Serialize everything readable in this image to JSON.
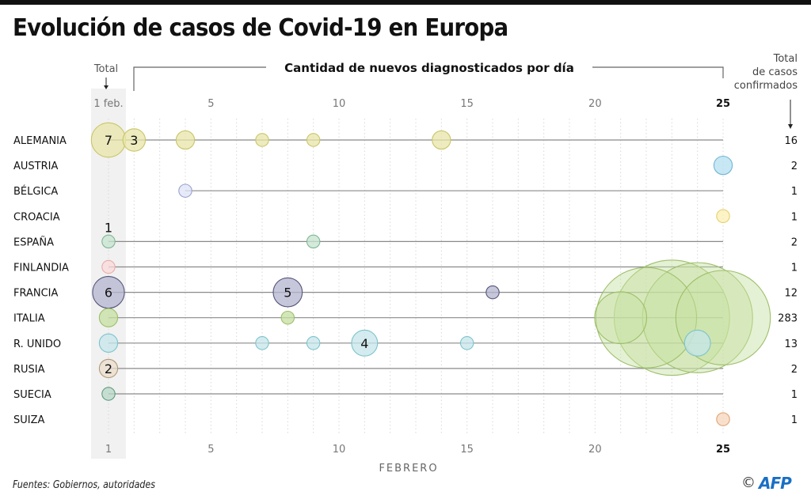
{
  "title": "Evolución de casos de Covid-19 en Europa",
  "footer": {
    "source": "Fuentes: Gobiernos, autoridades",
    "copyright_symbol": "©",
    "logo": "AFP"
  },
  "chart_data": {
    "type": "scatter",
    "subtype": "bubble-timeline",
    "title": "Evolución de casos de Covid-19 en Europa",
    "subtitle": "Cantidad de nuevos diagnosticados por día",
    "left_header": "Total",
    "right_header": [
      "Total",
      "de casos",
      "confirmados"
    ],
    "xlabel": "FEBRERO",
    "xlim": [
      1,
      25
    ],
    "top_ticks": [
      {
        "value": 1,
        "label": "1 feb."
      },
      {
        "value": 5,
        "label": "5"
      },
      {
        "value": 10,
        "label": "10"
      },
      {
        "value": 15,
        "label": "15"
      },
      {
        "value": 20,
        "label": "20"
      },
      {
        "value": 25,
        "label": "25"
      }
    ],
    "bottom_ticks": [
      {
        "value": 1,
        "label": "1"
      },
      {
        "value": 5,
        "label": "5"
      },
      {
        "value": 10,
        "label": "10"
      },
      {
        "value": 15,
        "label": "15"
      },
      {
        "value": 20,
        "label": "20"
      },
      {
        "value": 25,
        "label": "25"
      }
    ],
    "grid": true,
    "series": [
      {
        "name": "ALEMANIA",
        "color": "#e8e6a8",
        "stroke": "#c9c56a",
        "total": "16",
        "points": [
          {
            "day": 1,
            "value": 7,
            "label": "7"
          },
          {
            "day": 2,
            "value": 3,
            "label": "3"
          },
          {
            "day": 4,
            "value": 2
          },
          {
            "day": 7,
            "value": 1
          },
          {
            "day": 9,
            "value": 1
          },
          {
            "day": 14,
            "value": 2
          }
        ]
      },
      {
        "name": "AUSTRIA",
        "color": "#b6dff0",
        "stroke": "#6fb6d4",
        "total": "2",
        "points": [
          {
            "day": 25,
            "value": 2
          }
        ]
      },
      {
        "name": "BÉLGICA",
        "color": "#dfe3f6",
        "stroke": "#9aa2cc",
        "total": "1",
        "points": [
          {
            "day": 4,
            "value": 1
          }
        ]
      },
      {
        "name": "CROACIA",
        "color": "#fbefb4",
        "stroke": "#e6cf6a",
        "total": "1",
        "points": [
          {
            "day": 25,
            "value": 1
          }
        ]
      },
      {
        "name": "ESPAÑA",
        "color": "#c5e3cf",
        "stroke": "#7fb592",
        "total": "2",
        "points": [
          {
            "day": 1,
            "value": 1,
            "label": "1",
            "label_above": true
          },
          {
            "day": 9,
            "value": 1
          }
        ]
      },
      {
        "name": "FINLANDIA",
        "color": "#f9dada",
        "stroke": "#eaaaaa",
        "total": "1",
        "points": [
          {
            "day": 1,
            "value": 1
          }
        ]
      },
      {
        "name": "FRANCIA",
        "color": "#b4b4d0",
        "stroke": "#55557a",
        "total": "12",
        "points": [
          {
            "day": 1,
            "value": 6,
            "label": "6"
          },
          {
            "day": 8,
            "value": 5,
            "label": "5"
          },
          {
            "day": 16,
            "value": 1
          }
        ]
      },
      {
        "name": "ITALIA",
        "color": "#c6dfa0",
        "stroke": "#9dbf6a",
        "total": "283",
        "points": [
          {
            "day": 1,
            "value": 2
          },
          {
            "day": 8,
            "value": 1
          },
          {
            "day": 21,
            "value": 16
          },
          {
            "day": 22,
            "value": 60
          },
          {
            "day": 23,
            "value": 79
          },
          {
            "day": 24,
            "value": 72
          },
          {
            "day": 25,
            "value": 53
          }
        ]
      },
      {
        "name": "R. UNIDO",
        "color": "#c6e6ea",
        "stroke": "#7cc3cc",
        "total": "13",
        "points": [
          {
            "day": 1,
            "value": 2
          },
          {
            "day": 7,
            "value": 1
          },
          {
            "day": 9,
            "value": 1
          },
          {
            "day": 11,
            "value": 4,
            "label": "4"
          },
          {
            "day": 15,
            "value": 1
          },
          {
            "day": 24,
            "value": 4
          }
        ]
      },
      {
        "name": "RUSIA",
        "color": "#eadccb",
        "stroke": "#b39a7a",
        "total": "2",
        "points": [
          {
            "day": 1,
            "value": 2,
            "label": "2"
          }
        ]
      },
      {
        "name": "SUECIA",
        "color": "#b7d7c6",
        "stroke": "#5f9a7e",
        "total": "1",
        "points": [
          {
            "day": 1,
            "value": 1
          }
        ]
      },
      {
        "name": "SUIZA",
        "color": "#f7d6bb",
        "stroke": "#e0a57a",
        "total": "1",
        "points": [
          {
            "day": 25,
            "value": 1
          }
        ]
      }
    ]
  }
}
